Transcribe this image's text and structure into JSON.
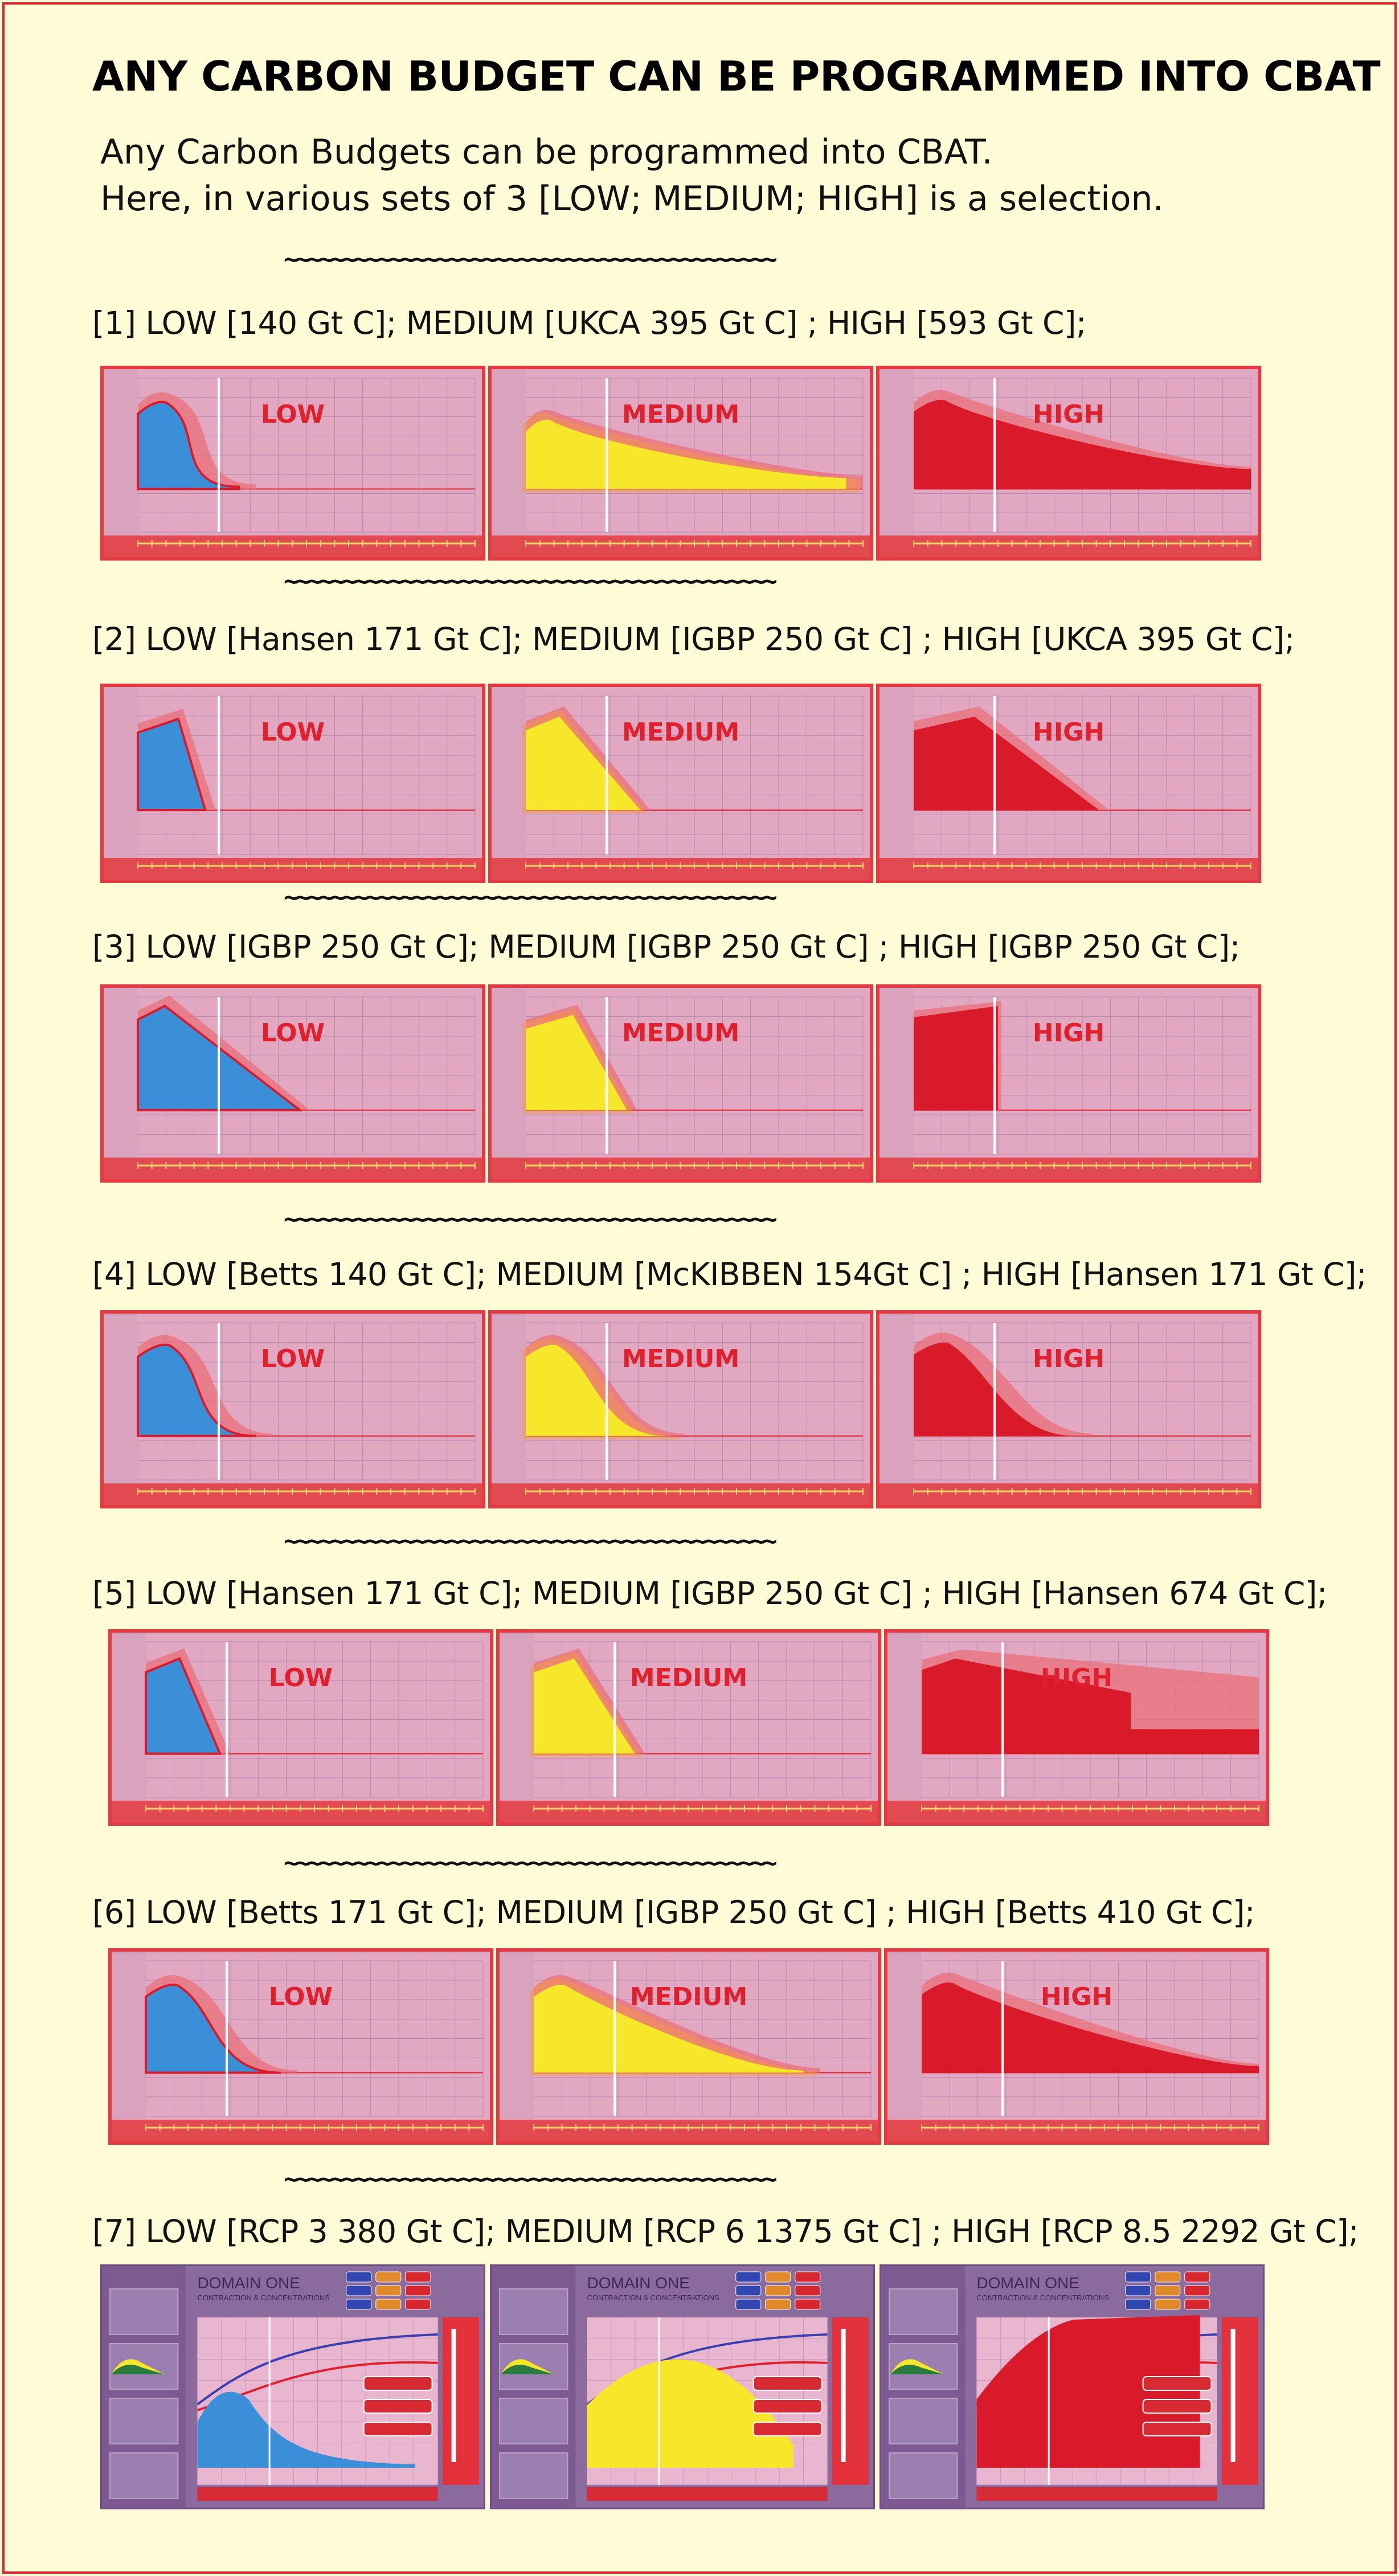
{
  "title": "ANY CARBON BUDGET CAN BE PROGRAMMED INTO CBAT",
  "intro": [
    "Any Carbon Budgets can be programmed into CBAT.",
    "Here, in various sets of 3 [LOW; MEDIUM; HIGH] is a selection."
  ],
  "separator": "~~~~~~~~~~~~~~~~~~~~~~~~~~~~~~~~~~~~~~~~~~",
  "scenario_levels": [
    "LOW",
    "MEDIUM",
    "HIGH"
  ],
  "colors": {
    "low": "#3a8fd8",
    "medium": "#f6e72b",
    "high": "#d91a2a",
    "panel_bg": "#e2a8c2",
    "border": "#e53a44",
    "page_bg": "#fefbd6"
  },
  "sections": [
    {
      "label": "[1] LOW [140 Gt C]; MEDIUM [UKCA 395 Gt C] ; HIGH [593 Gt C];"
    },
    {
      "label": "[2] LOW [Hansen 171 Gt C]; MEDIUM [IGBP 250 Gt C] ; HIGH [UKCA 395 Gt C];"
    },
    {
      "label": "[3] LOW [IGBP 250 Gt C]; MEDIUM [IGBP 250 Gt C] ; HIGH [IGBP 250 Gt C];"
    },
    {
      "label": "[4] LOW [Betts 140 Gt C]; MEDIUM [McKIBBEN 154Gt C] ; HIGH [Hansen 171 Gt C];"
    },
    {
      "label": "[5] LOW [Hansen 171 Gt C]; MEDIUM [IGBP 250 Gt C] ; HIGH [Hansen 674 Gt C];"
    },
    {
      "label": "[6] LOW [Betts 171 Gt C]; MEDIUM [IGBP 250 Gt C] ; HIGH [Betts 410 Gt C];"
    },
    {
      "label": "[7] LOW [RCP 3 380 Gt C]; MEDIUM [RCP 6 1375 Gt C] ; HIGH [RCP 8.5 2292 Gt C];",
      "domain_title": "DOMAIN ONE",
      "domain_subtitle": "CONTRACTION & CONCENTRATIONS"
    }
  ]
}
